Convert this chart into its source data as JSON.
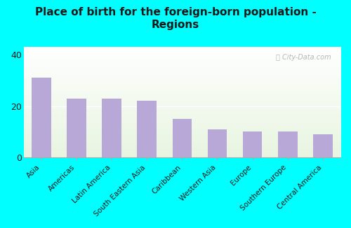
{
  "title": "Place of birth for the foreign-born population -\nRegions",
  "categories": [
    "Asia",
    "Americas",
    "Latin America",
    "South Eastern Asia",
    "Caribbean",
    "Western Asia",
    "Europe",
    "Southern Europe",
    "Central America"
  ],
  "values": [
    31,
    23,
    23,
    22,
    15,
    11,
    10,
    10,
    9
  ],
  "bar_color": "#b8a8d8",
  "background_color": "#00ffff",
  "yticks": [
    0,
    20,
    40
  ],
  "ylim": [
    0,
    43
  ],
  "watermark": "ⓘ City-Data.com",
  "title_fontsize": 11,
  "tick_label_fontsize": 7.5,
  "ytick_fontsize": 9,
  "title_color": "#1a1a1a"
}
